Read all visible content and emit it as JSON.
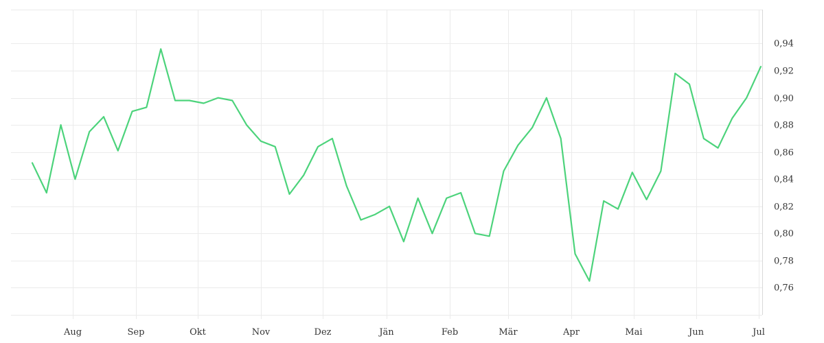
{
  "chart_data": {
    "type": "line",
    "title": "",
    "xlabel": "",
    "ylabel": "",
    "grid": true,
    "legend": "none",
    "line_color": "#4cd37b",
    "ylim": [
      0.74,
      0.965
    ],
    "y_ticks": [
      "0,76",
      "0,78",
      "0,80",
      "0,82",
      "0,84",
      "0,86",
      "0,88",
      "0,90",
      "0,92",
      "0,94"
    ],
    "y_tick_values": [
      0.76,
      0.78,
      0.8,
      0.82,
      0.84,
      0.86,
      0.88,
      0.9,
      0.92,
      0.94
    ],
    "x_ticks": [
      "Aug",
      "Sep",
      "Okt",
      "Nov",
      "Dez",
      "Jän",
      "Feb",
      "Mär",
      "Apr",
      "Mai",
      "Jun",
      "Jul"
    ],
    "series": [
      {
        "values": [
          0.852,
          0.83,
          0.88,
          0.84,
          0.875,
          0.886,
          0.861,
          0.89,
          0.893,
          0.936,
          0.898,
          0.898,
          0.896,
          0.9,
          0.898,
          0.88,
          0.868,
          0.864,
          0.829,
          0.843,
          0.864,
          0.87,
          0.835,
          0.81,
          0.814,
          0.82,
          0.794,
          0.826,
          0.8,
          0.826,
          0.83,
          0.8,
          0.798,
          0.846,
          0.865,
          0.878,
          0.9,
          0.87,
          0.785,
          0.765,
          0.824,
          0.818,
          0.845,
          0.825,
          0.846,
          0.918,
          0.91,
          0.87,
          0.863,
          0.885,
          0.9,
          0.923
        ]
      }
    ]
  }
}
